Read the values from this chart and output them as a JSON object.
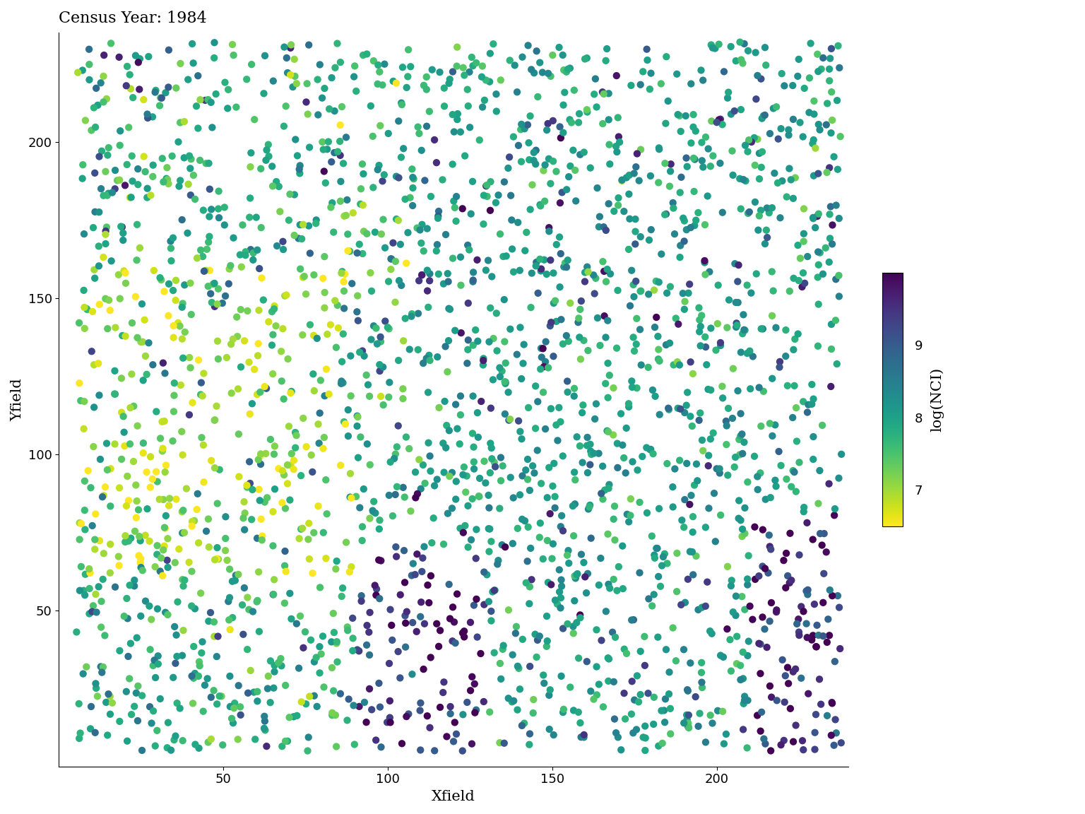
{
  "title": "Census Year: 1984",
  "xlabel": "Xfield",
  "ylabel": "Yfield",
  "xlim": [
    0,
    240
  ],
  "ylim": [
    0,
    235
  ],
  "xticks": [
    50,
    100,
    150,
    200
  ],
  "yticks": [
    50,
    100,
    150,
    200
  ],
  "colorbar_label": "log(NCI)",
  "colorbar_ticks": [
    7,
    8,
    9
  ],
  "colormap": "viridis",
  "vmin": 6.5,
  "vmax": 10.0,
  "n_points": 2500,
  "seed": 42,
  "point_size": 55,
  "background_color": "#ffffff",
  "title_fontsize": 16,
  "label_fontsize": 15,
  "tick_fontsize": 13,
  "colorbar_fontsize": 15
}
